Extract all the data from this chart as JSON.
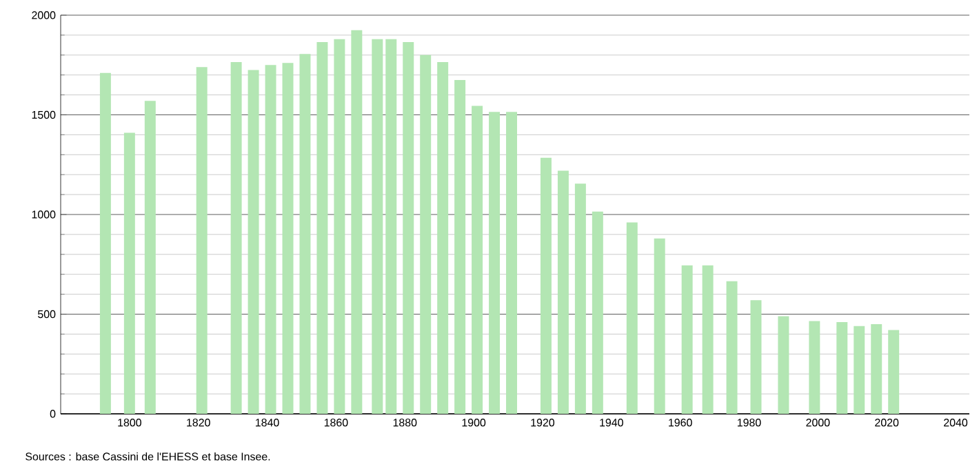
{
  "chart_data": {
    "type": "bar",
    "x": [
      1793,
      1800,
      1806,
      1821,
      1831,
      1836,
      1841,
      1846,
      1851,
      1856,
      1861,
      1866,
      1872,
      1876,
      1881,
      1886,
      1891,
      1896,
      1901,
      1906,
      1911,
      1921,
      1926,
      1931,
      1936,
      1946,
      1954,
      1962,
      1968,
      1975,
      1982,
      1990,
      1999,
      2007,
      2012,
      2017,
      2022
    ],
    "values": [
      1710,
      1410,
      1570,
      1740,
      1765,
      1725,
      1750,
      1760,
      1805,
      1865,
      1880,
      1925,
      1880,
      1880,
      1865,
      1800,
      1765,
      1675,
      1545,
      1515,
      1515,
      1285,
      1220,
      1155,
      1015,
      960,
      880,
      745,
      745,
      665,
      570,
      490,
      465,
      460,
      440,
      450,
      420
    ],
    "color": "#b3e6b3",
    "xlim": [
      1780,
      2044
    ],
    "xticks": [
      1800,
      1820,
      1840,
      1860,
      1880,
      1900,
      1920,
      1940,
      1960,
      1980,
      2000,
      2020,
      2040
    ],
    "ylim": [
      0,
      2000
    ],
    "yticks": [
      0,
      500,
      1000,
      1500,
      2000
    ],
    "grid": "y",
    "annotations": [
      "Sources : base Cassini de l'EHESS et base Insee."
    ]
  }
}
